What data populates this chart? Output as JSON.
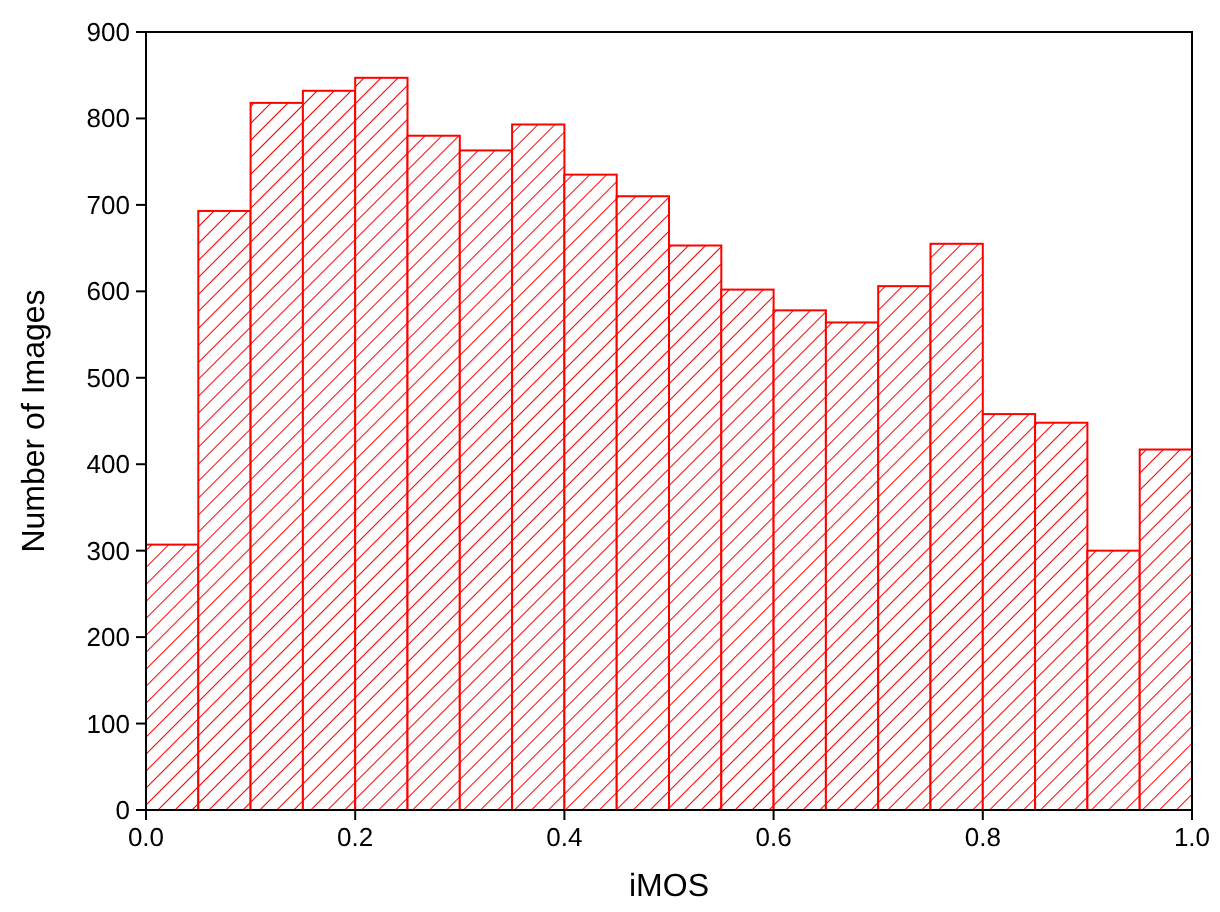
{
  "chart_data": {
    "type": "histogram",
    "xlabel": "iMOS",
    "ylabel": "Number of Images",
    "color": "#ff0000",
    "bins": [
      0,
      0.05,
      0.1,
      0.15,
      0.2,
      0.25,
      0.3,
      0.35,
      0.4,
      0.45,
      0.5,
      0.55,
      0.6,
      0.65,
      0.7,
      0.75,
      0.8,
      0.85,
      0.9,
      0.95,
      1.0
    ],
    "values": [
      307,
      693,
      818,
      832,
      847,
      780,
      763,
      793,
      735,
      710,
      653,
      602,
      578,
      564,
      606,
      655,
      458,
      448,
      300,
      417
    ],
    "xlim": [
      0,
      1
    ],
    "xticks": [
      {
        "value": 0,
        "label": "0.0"
      },
      {
        "value": 0.2,
        "label": "0.2"
      },
      {
        "value": 0.4,
        "label": "0.4"
      },
      {
        "value": 0.6,
        "label": "0.6"
      },
      {
        "value": 0.8,
        "label": "0.8"
      },
      {
        "value": 1,
        "label": "1.0"
      }
    ],
    "ylim": [
      0,
      900
    ],
    "yticks": [
      0,
      100,
      200,
      300,
      400,
      500,
      600,
      700,
      800,
      900
    ],
    "grid": false
  }
}
